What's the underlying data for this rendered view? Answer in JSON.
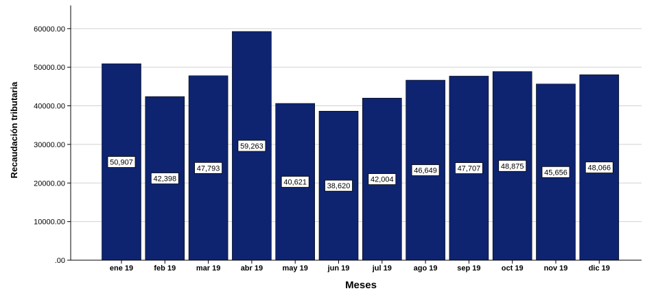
{
  "chart_data": {
    "type": "bar",
    "title": "",
    "xlabel": "Meses",
    "ylabel": "Recaudación tributaria",
    "categories": [
      "ene 19",
      "feb 19",
      "mar 19",
      "abr 19",
      "may 19",
      "jun 19",
      "jul 19",
      "ago 19",
      "sep 19",
      "oct 19",
      "nov 19",
      "dic 19"
    ],
    "values": [
      50907,
      42398,
      47793,
      59263,
      40621,
      38620,
      42004,
      46649,
      47707,
      48875,
      45656,
      48066
    ],
    "data_labels": [
      "50,907",
      "42,398",
      "47,793",
      "59,263",
      "40,621",
      "38,620",
      "42,004",
      "46,649",
      "47,707",
      "48,875",
      "45,656",
      "48,066"
    ],
    "yticks": [
      0,
      10000,
      20000,
      30000,
      40000,
      50000,
      60000
    ],
    "ytick_labels": [
      ".00",
      "10000.00",
      "20000.00",
      "30000.00",
      "40000.00",
      "50000.00",
      "60000.00"
    ],
    "ylim": [
      0,
      66000
    ],
    "grid": true,
    "bar_color": "#0e2470",
    "legend": "none"
  }
}
